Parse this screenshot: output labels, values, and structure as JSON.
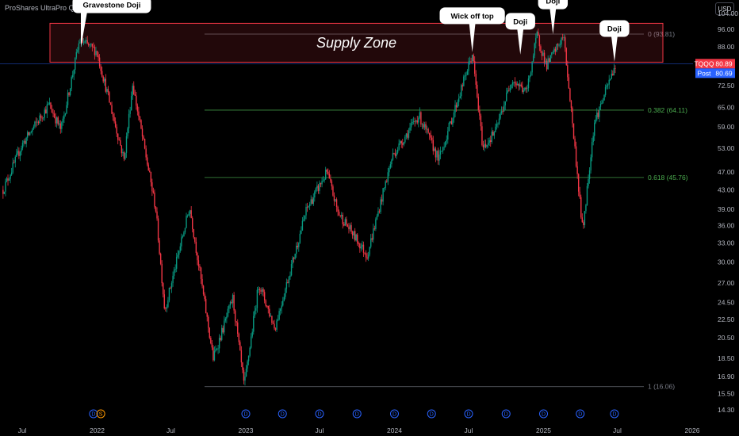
{
  "header": {
    "title": "ProShares UltraPro QQQ · 3D · NASDAQ",
    "currency": "USD"
  },
  "chart_data": {
    "type": "candlestick",
    "scale": "log",
    "ylim": [
      14.3,
      104.0
    ],
    "y_ticks": [
      "104.00",
      "96.00",
      "88.00",
      "80.00",
      "72.50",
      "65.00",
      "59.00",
      "53.00",
      "47.00",
      "43.00",
      "39.00",
      "36.00",
      "33.00",
      "30.00",
      "27.00",
      "24.50",
      "22.50",
      "20.50",
      "18.50",
      "16.90",
      "15.50",
      "14.30"
    ],
    "x_ticks": [
      {
        "label": "Jul",
        "date": "2021-07-01"
      },
      {
        "label": "2022",
        "date": "2022-01-01"
      },
      {
        "label": "Jul",
        "date": "2022-07-01"
      },
      {
        "label": "2023",
        "date": "2023-01-01"
      },
      {
        "label": "Jul",
        "date": "2023-07-01"
      },
      {
        "label": "2024",
        "date": "2024-01-01"
      },
      {
        "label": "Jul",
        "date": "2024-07-01"
      },
      {
        "label": "2025",
        "date": "2025-01-01"
      },
      {
        "label": "Jul",
        "date": "2025-07-01"
      },
      {
        "label": "2026",
        "date": "2026-01-01"
      }
    ],
    "price_path": [
      [
        "2021-05-15",
        43
      ],
      [
        "2021-07-01",
        54
      ],
      [
        "2021-09-05",
        66
      ],
      [
        "2021-10-04",
        58
      ],
      [
        "2021-11-19",
        91
      ],
      [
        "2021-12-31",
        86
      ],
      [
        "2022-03-08",
        50
      ],
      [
        "2022-03-29",
        73
      ],
      [
        "2022-05-25",
        39
      ],
      [
        "2022-06-16",
        23.5
      ],
      [
        "2022-08-16",
        39.5
      ],
      [
        "2022-10-13",
        18.5
      ],
      [
        "2022-11-30",
        25
      ],
      [
        "2022-12-28",
        16.06
      ],
      [
        "2023-02-02",
        27
      ],
      [
        "2023-03-13",
        21.5
      ],
      [
        "2023-05-30",
        39
      ],
      [
        "2023-07-19",
        47
      ],
      [
        "2023-08-15",
        38.5
      ],
      [
        "2023-10-26",
        31
      ],
      [
        "2023-12-27",
        51
      ],
      [
        "2024-03-01",
        62.5
      ],
      [
        "2024-04-19",
        50
      ],
      [
        "2024-07-10",
        85
      ],
      [
        "2024-08-05",
        53
      ],
      [
        "2024-09-06",
        58
      ],
      [
        "2024-10-15",
        75
      ],
      [
        "2024-11-20",
        70
      ],
      [
        "2024-12-16",
        93.5
      ],
      [
        "2025-01-08",
        80
      ],
      [
        "2025-02-19",
        93
      ],
      [
        "2025-03-10",
        64
      ],
      [
        "2025-04-07",
        35
      ],
      [
        "2025-05-05",
        60
      ],
      [
        "2025-06-27",
        80.89
      ]
    ],
    "supply_zone": {
      "label": "Supply Zone",
      "low": 81.5,
      "high": 99.0,
      "start": "2021-05-15",
      "end": "2025-11-15"
    },
    "fib_levels": [
      {
        "label": "0 (93.81)",
        "value": 93.81
      },
      {
        "label": "0.382 (64.11)",
        "value": 64.11
      },
      {
        "label": "0.618 (45.76)",
        "value": 45.76
      },
      {
        "label": "1 (16.06)",
        "value": 16.06
      }
    ],
    "fib_start": "2022-12-28",
    "annotations": [
      {
        "text": "Gravestone Doji",
        "date": "2021-11-22",
        "price": 87
      },
      {
        "text": "Wick off top",
        "date": "2024-07-10",
        "price": 85
      },
      {
        "text": "Doji",
        "date": "2024-11-05",
        "price": 84
      },
      {
        "text": "Doji",
        "date": "2025-01-24",
        "price": 93
      },
      {
        "text": "Doji",
        "date": "2025-06-24",
        "price": 81
      }
    ],
    "last_price": {
      "symbol": "TQQQ",
      "value": "80.89",
      "color": "#f23645"
    },
    "post_price": {
      "label": "Post",
      "value": "80.69",
      "color": "#2962ff"
    },
    "dividends": [
      {
        "date": "2021-12-23",
        "mark": "D",
        "color": "#2962ff"
      },
      {
        "date": "2022-01-10",
        "mark": "S",
        "color": "#ff9800"
      },
      {
        "date": "2023-01-01",
        "mark": "D",
        "color": "#2962ff"
      },
      {
        "date": "2023-04-01",
        "mark": "D",
        "color": "#2962ff"
      },
      {
        "date": "2023-07-01",
        "mark": "D",
        "color": "#2962ff"
      },
      {
        "date": "2023-10-01",
        "mark": "D",
        "color": "#2962ff"
      },
      {
        "date": "2024-01-01",
        "mark": "D",
        "color": "#2962ff"
      },
      {
        "date": "2024-04-01",
        "mark": "D",
        "color": "#2962ff"
      },
      {
        "date": "2024-07-01",
        "mark": "D",
        "color": "#2962ff"
      },
      {
        "date": "2024-10-01",
        "mark": "D",
        "color": "#2962ff"
      },
      {
        "date": "2025-01-01",
        "mark": "D",
        "color": "#2962ff"
      },
      {
        "date": "2025-04-01",
        "mark": "D",
        "color": "#2962ff"
      },
      {
        "date": "2025-06-24",
        "mark": "D",
        "color": "#2962ff"
      }
    ],
    "colors": {
      "up": "#089981",
      "down": "#f23645",
      "fib": "#4caf50",
      "fib_end": "#787b86",
      "zone": "#f23645"
    }
  }
}
